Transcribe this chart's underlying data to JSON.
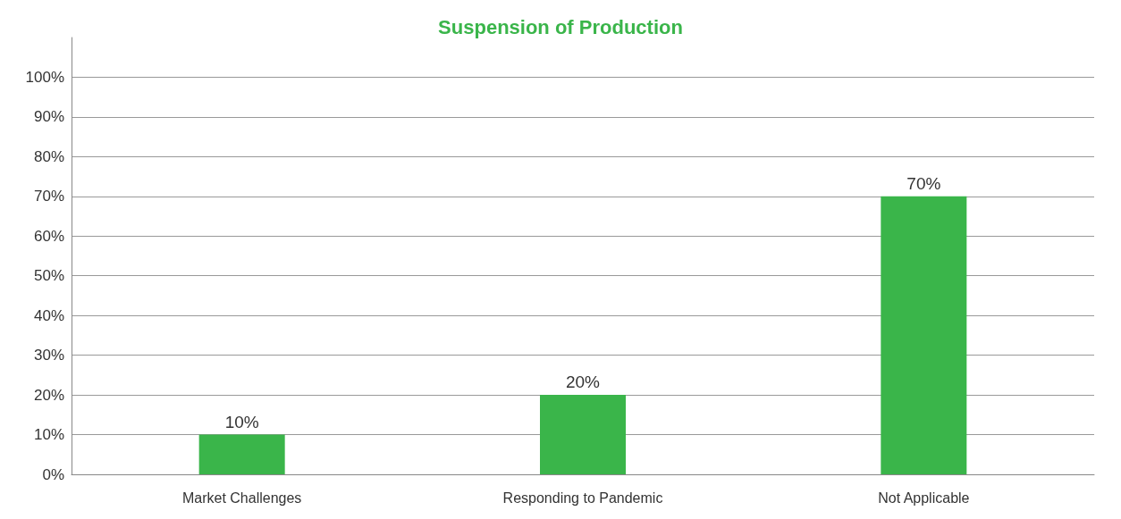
{
  "chart_data": {
    "type": "bar",
    "title": "Suspension of Production",
    "categories": [
      "Market Challenges",
      "Responding to Pandemic",
      "Not Applicable"
    ],
    "values": [
      10,
      20,
      70
    ],
    "color": "#3ab54a",
    "value_labels": [
      "10%",
      "20%",
      "70%"
    ],
    "ylim": [
      0,
      110
    ],
    "yticks": [
      {
        "value": 0,
        "label": "0%"
      },
      {
        "value": 10,
        "label": "10%"
      },
      {
        "value": 20,
        "label": "20%"
      },
      {
        "value": 30,
        "label": "30%"
      },
      {
        "value": 40,
        "label": "40%"
      },
      {
        "value": 50,
        "label": "50%"
      },
      {
        "value": 60,
        "label": "60%"
      },
      {
        "value": 70,
        "label": "70%"
      },
      {
        "value": 80,
        "label": "80%"
      },
      {
        "value": 90,
        "label": "90%"
      },
      {
        "value": 100,
        "label": "100%"
      }
    ],
    "grid": "y"
  }
}
